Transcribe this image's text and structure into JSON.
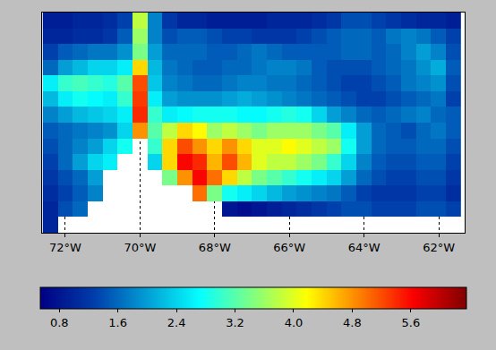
{
  "chart_data": {
    "type": "heatmap",
    "grid": true,
    "tick_labels": "x",
    "xlim": [
      -72.62,
      -61.31
    ],
    "ylim": [
      0,
      14
    ],
    "xticks": [
      {
        "value": -72,
        "label": "72°W"
      },
      {
        "value": -70,
        "label": "70°W"
      },
      {
        "value": -68,
        "label": "68°W"
      },
      {
        "value": -66,
        "label": "66°W"
      },
      {
        "value": -64,
        "label": "64°W"
      },
      {
        "value": -62,
        "label": "62°W"
      }
    ],
    "x": [
      -72.4,
      -72.0,
      -71.6,
      -71.2,
      -70.8,
      -70.4,
      -70.0,
      -69.6,
      -69.2,
      -68.8,
      -68.4,
      -68.0,
      -67.6,
      -67.2,
      -66.8,
      -66.4,
      -66.0,
      -65.6,
      -65.2,
      -64.8,
      -64.4,
      -64.0,
      -63.6,
      -63.2,
      -62.8,
      -62.4,
      -62.0,
      -61.6
    ],
    "y": [
      13.5,
      12.5,
      11.5,
      10.5,
      9.5,
      8.5,
      7.5,
      6.5,
      5.5,
      4.5,
      3.5,
      2.5,
      1.5,
      0.5
    ],
    "cells": [
      [
        0.9,
        0.9,
        1.0,
        1.0,
        1.1,
        1.3,
        3.8,
        1.8,
        1.2,
        1.0,
        1.0,
        0.9,
        0.9,
        0.9,
        0.9,
        1.0,
        1.0,
        1.0,
        1.1,
        1.2,
        1.4,
        1.4,
        1.3,
        1.2,
        1.1,
        1.0,
        1.0,
        0.9
      ],
      [
        1.0,
        1.0,
        1.1,
        1.1,
        1.2,
        1.5,
        3.6,
        1.8,
        1.4,
        1.5,
        1.5,
        1.4,
        1.3,
        1.3,
        1.2,
        1.2,
        1.2,
        1.3,
        1.4,
        1.5,
        1.6,
        1.6,
        1.5,
        1.7,
        1.8,
        1.7,
        1.5,
        1.3
      ],
      [
        1.3,
        1.5,
        1.6,
        1.7,
        1.7,
        1.9,
        3.4,
        2.0,
        1.6,
        1.6,
        1.6,
        1.5,
        1.5,
        1.6,
        1.7,
        1.6,
        1.5,
        1.5,
        1.5,
        1.5,
        1.6,
        1.6,
        1.5,
        1.6,
        1.8,
        2.0,
        1.8,
        1.4
      ],
      [
        1.6,
        2.0,
        2.2,
        2.4,
        2.4,
        2.6,
        4.4,
        2.2,
        1.7,
        1.6,
        1.5,
        1.5,
        1.6,
        1.6,
        1.7,
        1.8,
        1.8,
        1.7,
        1.5,
        1.4,
        1.4,
        1.4,
        1.5,
        1.6,
        1.7,
        1.9,
        2.1,
        1.5
      ],
      [
        2.6,
        3.0,
        3.1,
        3.0,
        2.9,
        3.2,
        5.2,
        2.3,
        1.8,
        1.7,
        1.6,
        1.6,
        1.7,
        1.8,
        1.8,
        1.7,
        1.7,
        1.6,
        1.5,
        1.4,
        1.3,
        1.3,
        1.4,
        1.5,
        1.7,
        1.8,
        1.9,
        1.4
      ],
      [
        2.2,
        2.6,
        2.8,
        2.7,
        2.6,
        3.0,
        5.3,
        2.6,
        2.0,
        1.9,
        1.9,
        1.9,
        2.0,
        2.1,
        2.0,
        1.9,
        1.8,
        1.7,
        1.6,
        1.5,
        1.4,
        1.3,
        1.3,
        1.4,
        1.5,
        1.6,
        1.7,
        1.3
      ],
      [
        1.8,
        2.0,
        2.2,
        2.3,
        2.4,
        2.6,
        5.4,
        3.0,
        2.6,
        2.7,
        2.8,
        2.8,
        2.8,
        2.7,
        2.7,
        2.8,
        2.9,
        2.8,
        2.4,
        2.0,
        1.8,
        1.6,
        1.5,
        1.6,
        1.7,
        1.8,
        1.6,
        1.5
      ],
      [
        1.5,
        1.6,
        1.7,
        1.8,
        1.9,
        2.4,
        4.8,
        3.2,
        3.8,
        4.4,
        4.2,
        3.6,
        3.8,
        3.6,
        3.4,
        3.6,
        3.6,
        3.6,
        3.4,
        3.2,
        2.6,
        2.0,
        1.6,
        1.5,
        1.4,
        1.6,
        1.7,
        1.5
      ],
      [
        1.4,
        1.6,
        1.8,
        2.0,
        2.4,
        2.8,
        null,
        3.0,
        4.4,
        5.2,
        4.8,
        4.4,
        4.8,
        4.4,
        4.0,
        4.0,
        4.2,
        4.0,
        3.8,
        3.6,
        2.8,
        2.0,
        1.6,
        1.5,
        1.5,
        1.6,
        1.6,
        1.4
      ],
      [
        1.3,
        1.6,
        2.0,
        2.4,
        2.6,
        null,
        null,
        2.4,
        4.4,
        5.6,
        5.4,
        4.6,
        5.2,
        4.6,
        4.0,
        3.8,
        3.8,
        3.6,
        3.4,
        3.0,
        2.4,
        1.8,
        1.5,
        1.4,
        1.4,
        1.5,
        1.5,
        1.3
      ],
      [
        1.2,
        1.4,
        1.6,
        2.0,
        null,
        null,
        null,
        null,
        3.4,
        4.8,
        5.6,
        5.0,
        4.4,
        3.8,
        3.4,
        3.2,
        3.0,
        2.8,
        2.6,
        2.4,
        2.0,
        1.6,
        1.4,
        1.3,
        1.3,
        1.4,
        1.4,
        1.2
      ],
      [
        1.1,
        1.3,
        1.5,
        1.8,
        null,
        null,
        null,
        null,
        null,
        null,
        5.0,
        3.4,
        2.8,
        2.6,
        2.4,
        2.2,
        2.0,
        1.9,
        1.8,
        1.7,
        1.5,
        1.3,
        1.2,
        1.2,
        1.2,
        1.3,
        1.3,
        1.1
      ],
      [
        1.0,
        1.4,
        1.6,
        null,
        null,
        null,
        null,
        null,
        null,
        null,
        null,
        null,
        0.8,
        0.7,
        0.8,
        0.9,
        1.0,
        1.1,
        1.2,
        1.3,
        1.4,
        1.4,
        1.3,
        1.3,
        1.3,
        1.4,
        1.4,
        1.3
      ],
      [
        1.0,
        null,
        null,
        null,
        null,
        null,
        null,
        null,
        null,
        null,
        null,
        null,
        null,
        null,
        null,
        null,
        null,
        null,
        null,
        null,
        null,
        null,
        null,
        null,
        null,
        null,
        null,
        null
      ]
    ],
    "zlim": [
      0.54,
      6.36
    ],
    "zticks": [
      0.8,
      1.6,
      2.4,
      3.2,
      {
        "value": 4,
        "label": "4.0"
      },
      4.8,
      5.6
    ]
  }
}
